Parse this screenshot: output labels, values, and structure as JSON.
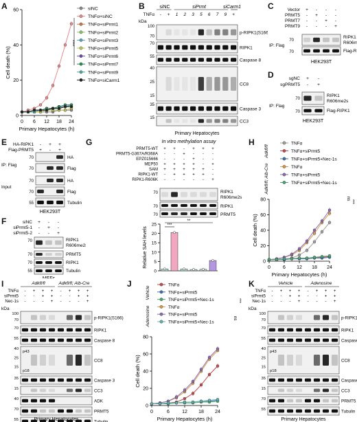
{
  "labels": {
    "A": "A",
    "B": "B",
    "C": "C",
    "D": "D",
    "E": "E",
    "F": "F",
    "G": "G",
    "H": "H",
    "I": "I",
    "J": "J",
    "K": "K"
  },
  "panelA": {
    "chart_data": {
      "type": "line",
      "xlabel": "Primary Hepatocytes (h)",
      "ylabel": "Cell death (%)",
      "x": [
        0,
        3,
        6,
        9,
        12,
        15,
        18,
        21,
        24
      ],
      "xticks": [
        0,
        6,
        12,
        18,
        24
      ],
      "yticks": [
        0,
        20,
        40,
        60
      ],
      "ylim": [
        0,
        60
      ],
      "series": [
        {
          "name": "siNC",
          "color": "#888888",
          "values": [
            2,
            2,
            2,
            2,
            2,
            2,
            3,
            3,
            3
          ]
        },
        {
          "name": "TNFα+siNC",
          "color": "#e58a8a",
          "values": [
            2,
            3,
            4,
            6,
            10,
            17,
            28,
            40,
            52
          ]
        },
        {
          "name": "TNFα+siPrmt1",
          "color": "#c97a4a",
          "values": [
            2,
            2,
            3,
            3,
            4,
            4,
            5,
            5,
            6
          ]
        },
        {
          "name": "TNFα+siPrmt2",
          "color": "#8fbf6a",
          "values": [
            2,
            2,
            2,
            3,
            3,
            4,
            4,
            5,
            5
          ]
        },
        {
          "name": "TNFα+siPrmt3",
          "color": "#5aa0c8",
          "values": [
            2,
            2,
            3,
            3,
            4,
            4,
            5,
            5,
            6
          ]
        },
        {
          "name": "TNFα+siPrmt5",
          "color": "#c4c456",
          "values": [
            2,
            2,
            2,
            2,
            3,
            3,
            3,
            3,
            4
          ]
        },
        {
          "name": "TNFα+siPrmt6",
          "color": "#6a4aa8",
          "values": [
            2,
            2,
            3,
            3,
            3,
            4,
            4,
            5,
            5
          ]
        },
        {
          "name": "TNFα+siPrmt7",
          "color": "#2e8b57",
          "values": [
            2,
            2,
            3,
            3,
            4,
            4,
            5,
            6,
            6
          ]
        },
        {
          "name": "TNFα+siPrmt9",
          "color": "#4aa8a0",
          "values": [
            2,
            2,
            2,
            3,
            3,
            4,
            4,
            5,
            5
          ]
        },
        {
          "name": "TNFα+siCarm1",
          "color": "#222222",
          "values": [
            2,
            2,
            3,
            3,
            3,
            4,
            4,
            5,
            5
          ]
        }
      ],
      "annotation": "****"
    }
  },
  "panelB": {
    "tnf": "TNFα",
    "sinc": "siNC",
    "siprmt": "siPrmt",
    "sicarm1": "siCarm1",
    "lanes": [
      "-",
      "+",
      "1",
      "2",
      "3",
      "5",
      "6",
      "7",
      "9",
      "+"
    ],
    "kda": "kDa",
    "rows": [
      {
        "label": "p-RIPK1(S166)",
        "mw": [
          "100",
          "70"
        ]
      },
      {
        "label": "RIPK1",
        "mw": [
          "70"
        ]
      },
      {
        "label": "Caspase 8",
        "mw": [
          "55"
        ]
      },
      {
        "label": "CC8",
        "mw": [
          "40",
          "25",
          "15"
        ],
        "sub": [
          "p43",
          "p18"
        ]
      },
      {
        "label": "Caspase 3",
        "mw": [
          "35"
        ]
      },
      {
        "label": "CC3",
        "mw": [
          "15"
        ]
      },
      {
        "label": "Tubulin",
        "mw": [
          "55"
        ]
      }
    ],
    "caption": "Primary Hepatocytes"
  },
  "panelC": {
    "rows": [
      "Vector",
      "PRMT5",
      "PRMT7",
      "PRMT9"
    ],
    "signs": [
      [
        "+",
        "-",
        "-",
        "-"
      ],
      [
        "-",
        "+",
        "-",
        "-"
      ],
      [
        "-",
        "-",
        "+",
        "-"
      ],
      [
        "-",
        "-",
        "-",
        "+"
      ]
    ],
    "ip": "IP: Flag",
    "blots": [
      "RIPK1 R606me2s",
      "Flag-RIPK1"
    ],
    "mw": [
      "70",
      "70"
    ],
    "cell": "HEK293T"
  },
  "panelD": {
    "rows": [
      "sgNC",
      "sgPRMT5"
    ],
    "signs": [
      [
        "+",
        "-"
      ],
      [
        "-",
        "+"
      ]
    ],
    "ip": "IP: Flag",
    "blots": [
      "RIPK1 R606me2s",
      "Flag-RIPK1"
    ],
    "mw": [
      "70",
      "70"
    ],
    "cell": "HEK293T"
  },
  "panelE": {
    "rows": [
      "HA-RIPK1",
      "Flag-PRMT5"
    ],
    "signs": [
      [
        "-",
        "+",
        "+"
      ],
      [
        "+",
        "-",
        "+"
      ]
    ],
    "ip": "IP: Flag",
    "input": "Input",
    "blots": [
      "HA",
      "Flag",
      "HA",
      "Flag",
      "Tubulin"
    ],
    "mw": [
      "70",
      "70",
      "70",
      "70",
      "55"
    ],
    "cell": "HEK293T"
  },
  "panelF": {
    "rows": [
      "siNC",
      "siPrmt5-1",
      "siPrmt5-2"
    ],
    "signs": [
      [
        "+",
        "-",
        "-"
      ],
      [
        "-",
        "+",
        "-"
      ],
      [
        "-",
        "-",
        "+"
      ]
    ],
    "blots": [
      "RIPK1 R606me2s",
      "PRMT5",
      "RIPK1",
      "Tubulin"
    ],
    "mw": [
      "70",
      "70",
      "70",
      "55"
    ],
    "cell": "MEFs"
  },
  "panelG": {
    "title": "In vitro methylation assay",
    "rows": [
      "PRMT5-WT",
      "PRMT5-G367A/R368A",
      "EPZ015666",
      "MEP50",
      "SAM",
      "RIPK1-WT",
      "RIPK1-R606K"
    ],
    "signs": [
      [
        "+",
        "+",
        "-",
        "+",
        "+",
        "+"
      ],
      [
        "-",
        "-",
        "+",
        "-",
        "-",
        "-"
      ],
      [
        "-",
        "-",
        "-",
        "+",
        "-",
        "-"
      ],
      [
        "+",
        "+",
        "+",
        "+",
        "-",
        "+"
      ],
      [
        "+",
        "+",
        "+",
        "+",
        "+",
        "-"
      ],
      [
        "-",
        "+",
        "+",
        "+",
        "+",
        "-"
      ],
      [
        "-",
        "-",
        "-",
        "-",
        "-",
        "+"
      ]
    ],
    "blots": [
      "RIPK1 R606me2s",
      "RIPK1",
      "PRMT5"
    ],
    "mw": [
      "70",
      "70",
      "70"
    ],
    "chart_data": {
      "type": "bar",
      "ylabel": "Relative SAH levels",
      "values": [
        1,
        20.5,
        1,
        0.7,
        0.8,
        5.5
      ],
      "colors": [
        "#b7e0d8",
        "#f2a7c0",
        "#b7e0d8",
        "#b7e0d8",
        "#b7e0d8",
        "#b596e0"
      ],
      "yticks": [
        0,
        5,
        10,
        15,
        20,
        25
      ],
      "ylim": [
        0,
        25
      ],
      "annot1": "***",
      "annot2": "**"
    }
  },
  "panelH": {
    "chart_data": {
      "type": "line",
      "xlabel": "Primary Hepatocytes (h)",
      "ylabel": "Cell death (%)",
      "x": [
        0,
        3,
        6,
        9,
        12,
        15,
        18,
        21,
        24
      ],
      "xticks": [
        0,
        6,
        12,
        18,
        24
      ],
      "yticks": [
        0,
        20,
        40,
        60,
        80
      ],
      "ylim": [
        0,
        80
      ],
      "group1": "Adkfl/fl",
      "group2": "Adkfl/fl; Alb-Cre",
      "series": [
        {
          "name": "TNFα",
          "color": "#a0a0a0",
          "values": [
            2,
            2,
            3,
            4,
            8,
            14,
            25,
            38,
            50
          ]
        },
        {
          "name": "TNFα+siPrmt5",
          "color": "#c24a4a",
          "values": [
            2,
            2,
            3,
            3,
            4,
            4,
            5,
            5,
            6
          ]
        },
        {
          "name": "TNFα+siPrmt5+Nec-1s",
          "color": "#3c6fb0",
          "values": [
            2,
            2,
            2,
            3,
            3,
            3,
            4,
            4,
            5
          ]
        },
        {
          "name": "TNFα",
          "color": "#d79a4a",
          "values": [
            2,
            3,
            5,
            8,
            14,
            24,
            36,
            50,
            62
          ]
        },
        {
          "name": "TNFα+siPrmt5",
          "color": "#8a6ab0",
          "values": [
            2,
            3,
            5,
            9,
            16,
            26,
            40,
            52,
            66
          ]
        },
        {
          "name": "TNFα+siPrmt5+Nec-1s",
          "color": "#4aa870",
          "values": [
            2,
            2,
            3,
            3,
            4,
            4,
            5,
            6,
            7
          ]
        }
      ],
      "annot1": "***",
      "annot2": "ns"
    }
  },
  "panelI": {
    "g1": "Adkfl/fl",
    "g2": "Adkfl/fl; Alb-Cre",
    "rows": [
      "TNFα",
      "siPrmt5",
      "Nec-1s"
    ],
    "signs": [
      [
        "-",
        "+",
        "+",
        "+",
        "-",
        "+",
        "+",
        "+"
      ],
      [
        "-",
        "-",
        "+",
        "+",
        "-",
        "-",
        "+",
        "+"
      ],
      [
        "-",
        "-",
        "-",
        "+",
        "-",
        "-",
        "-",
        "+"
      ]
    ],
    "kda": "kDa",
    "blots": [
      {
        "label": "p-RIPK1(S166)",
        "mw": [
          "100",
          "70"
        ]
      },
      {
        "label": "RIPK1",
        "mw": [
          "70"
        ]
      },
      {
        "label": "Caspase 8",
        "mw": [
          "55"
        ]
      },
      {
        "label": "CC8",
        "mw": [
          "40",
          "25",
          "15"
        ],
        "sub": [
          "p43",
          "p18"
        ]
      },
      {
        "label": "Caspase 3",
        "mw": [
          "35"
        ]
      },
      {
        "label": "CC3",
        "mw": [
          "15"
        ]
      },
      {
        "label": "ADK",
        "mw": [
          "40"
        ]
      },
      {
        "label": "PRMT5",
        "mw": [
          "70"
        ]
      },
      {
        "label": "Tubulin",
        "mw": [
          "55"
        ]
      }
    ],
    "caption": "Primary Hepatocytes"
  },
  "panelJ": {
    "chart_data": {
      "type": "line",
      "xlabel": "Primary Hepatocytes (h)",
      "ylabel": "Cell death (%)",
      "x": [
        0,
        3,
        6,
        9,
        12,
        15,
        18,
        21,
        24
      ],
      "xticks": [
        0,
        6,
        12,
        18,
        24
      ],
      "yticks": [
        0,
        20,
        40,
        60,
        80
      ],
      "ylim": [
        0,
        80
      ],
      "group1": "Vehicle",
      "group2": "Adenosine",
      "series": [
        {
          "name": "TNFα",
          "color": "#c24a4a",
          "values": [
            2,
            2,
            3,
            4,
            8,
            14,
            24,
            36,
            46
          ]
        },
        {
          "name": "TNFα+siPrmt5",
          "color": "#3c6fb0",
          "values": [
            2,
            2,
            3,
            3,
            4,
            4,
            5,
            5,
            6
          ]
        },
        {
          "name": "TNFα+siPrmt5+Nec-1s",
          "color": "#4aa870",
          "values": [
            2,
            2,
            2,
            3,
            3,
            3,
            4,
            4,
            5
          ]
        },
        {
          "name": "TNFα",
          "color": "#d79a4a",
          "values": [
            2,
            3,
            5,
            9,
            16,
            26,
            40,
            54,
            64
          ]
        },
        {
          "name": "TNFα+siPrmt5",
          "color": "#8a6ab0",
          "values": [
            2,
            3,
            5,
            10,
            18,
            28,
            42,
            56,
            66
          ]
        },
        {
          "name": "TNFα+siPrmt5+Nec-1s",
          "color": "#5fb0b0",
          "values": [
            2,
            2,
            3,
            3,
            4,
            4,
            5,
            6,
            7
          ]
        }
      ],
      "annot1": "***",
      "annot2": "ns"
    }
  },
  "panelK": {
    "g1": "Vehicle",
    "g2": "Adenosine",
    "rows": [
      "TNFα",
      "siPrmt5",
      "Nec-1s"
    ],
    "signs": [
      [
        "-",
        "+",
        "+",
        "+",
        "-",
        "+",
        "+",
        "+"
      ],
      [
        "-",
        "-",
        "+",
        "+",
        "-",
        "-",
        "+",
        "+"
      ],
      [
        "-",
        "-",
        "-",
        "+",
        "-",
        "-",
        "-",
        "+"
      ]
    ],
    "kda": "kDa",
    "blots": [
      {
        "label": "p-RIPK1(S166)",
        "mw": [
          "100",
          "70"
        ]
      },
      {
        "label": "RIPK1",
        "mw": [
          "70"
        ]
      },
      {
        "label": "Caspase 8",
        "mw": [
          "55"
        ]
      },
      {
        "label": "CC8",
        "mw": [
          "40",
          "25",
          "15"
        ],
        "sub": [
          "p43",
          "p18"
        ]
      },
      {
        "label": "Caspase 3",
        "mw": [
          "35"
        ]
      },
      {
        "label": "CC3",
        "mw": [
          "15"
        ]
      },
      {
        "label": "PRMT5",
        "mw": [
          "70"
        ]
      },
      {
        "label": "Tubulin",
        "mw": [
          "55"
        ]
      }
    ],
    "caption": "Primary Hepatocytes"
  }
}
